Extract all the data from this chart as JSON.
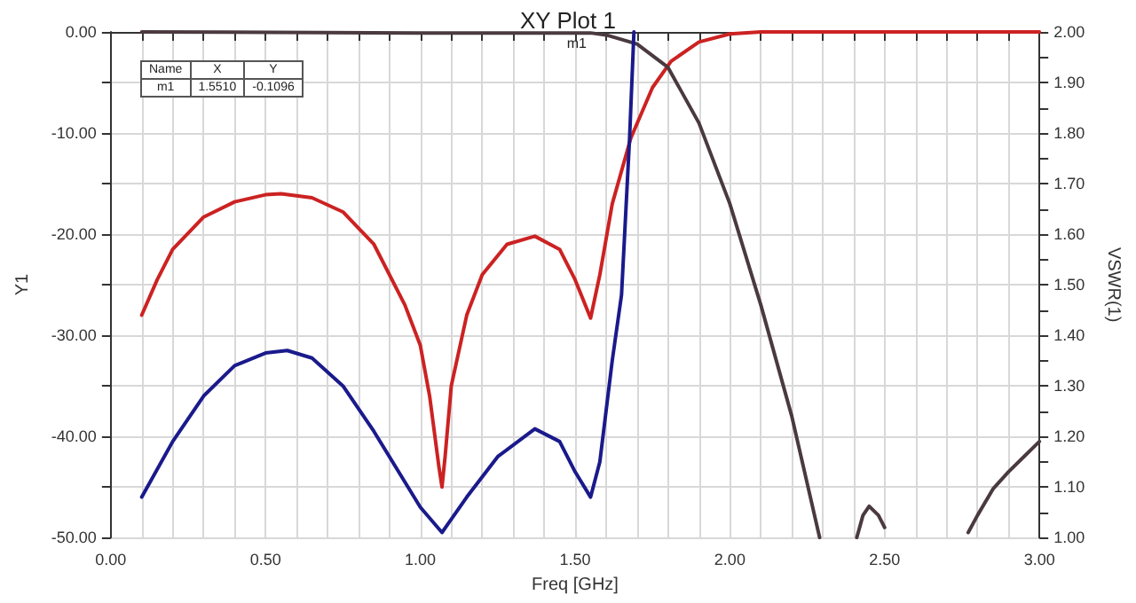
{
  "chart_data": {
    "type": "line",
    "title": "XY Plot 1",
    "xlabel": "Freq [GHz]",
    "ylabel": "Y1",
    "y2label": "VSWR(1)",
    "annotations": [
      "Name",
      "X",
      "Y",
      "m1",
      "1.5510",
      "-0.1096",
      {
        "text": "m1",
        "x": 1.551,
        "y": -0.1096
      }
    ],
    "series": [
      {
        "color": "#cc2222",
        "x": [
          0.1,
          0.15,
          0.2,
          0.3,
          0.4,
          0.5,
          0.55,
          0.65,
          0.75,
          0.85,
          0.95,
          1.0,
          1.03,
          1.06,
          1.07,
          1.08,
          1.1,
          1.15,
          1.2,
          1.28,
          1.37,
          1.45,
          1.5,
          1.55,
          1.58,
          1.62,
          1.68,
          1.75,
          1.81,
          1.9,
          2.0,
          2.1,
          3.0
        ],
        "values": [
          -28,
          -24.5,
          -21.5,
          -18.3,
          -16.8,
          -16.1,
          -16,
          -16.4,
          -17.8,
          -21,
          -27,
          -31,
          -36,
          -43,
          -45,
          -42,
          -35,
          -28,
          -24,
          -21,
          -20.2,
          -21.5,
          -24.5,
          -28.3,
          -24,
          -17,
          -10.5,
          -5.5,
          -2.9,
          -1,
          -0.2,
          0,
          0
        ]
      },
      {
        "color": "#4a3a40",
        "x": [
          0.1,
          1.0,
          1.3,
          1.55,
          1.6,
          1.7,
          1.8,
          1.9,
          2.0,
          2.1,
          2.2,
          2.26,
          2.29,
          2.35,
          2.41,
          2.43,
          2.45,
          2.48,
          2.5,
          2.6,
          2.77,
          2.8,
          2.85,
          2.9,
          2.95,
          3.0
        ],
        "values": [
          0,
          -0.1,
          -0.1,
          -0.1,
          -0.3,
          -1.2,
          -3.5,
          -9,
          -17,
          -27,
          -38,
          -46,
          -50,
          null,
          -50,
          -47.8,
          -46.9,
          -47.8,
          -49,
          null,
          -49.5,
          -47.8,
          -45.2,
          -43.5,
          -42,
          -40.5
        ]
      },
      {
        "color": "#1a1a8c",
        "axis": "y2",
        "x": [
          0.1,
          0.2,
          0.3,
          0.4,
          0.5,
          0.57,
          0.65,
          0.75,
          0.85,
          0.95,
          1.0,
          1.07,
          1.15,
          1.25,
          1.37,
          1.45,
          1.5,
          1.55,
          1.58,
          1.62,
          1.65,
          1.676,
          1.69
        ],
        "values": [
          1.08,
          1.19,
          1.28,
          1.34,
          1.365,
          1.37,
          1.355,
          1.3,
          1.21,
          1.11,
          1.06,
          1.01,
          1.08,
          1.16,
          1.215,
          1.19,
          1.13,
          1.08,
          1.15,
          1.35,
          1.48,
          1.79,
          2.0
        ]
      }
    ],
    "xlim": [
      0,
      3
    ],
    "xticks": [
      {
        "value": 0,
        "label": "0.00"
      },
      {
        "value": 0.1,
        "label": null
      },
      {
        "value": 0.2,
        "label": null
      },
      {
        "value": 0.3,
        "label": null
      },
      {
        "value": 0.4,
        "label": null
      },
      {
        "value": 0.5,
        "label": "0.50"
      },
      {
        "value": 0.6,
        "label": null
      },
      {
        "value": 0.7,
        "label": null
      },
      {
        "value": 0.8,
        "label": null
      },
      {
        "value": 0.9,
        "label": null
      },
      {
        "value": 1,
        "label": "1.00"
      },
      {
        "value": 1.1,
        "label": null
      },
      {
        "value": 1.2,
        "label": null
      },
      {
        "value": 1.3,
        "label": null
      },
      {
        "value": 1.4,
        "label": null
      },
      {
        "value": 1.5,
        "label": "1.50"
      },
      {
        "value": 1.6,
        "label": null
      },
      {
        "value": 1.7,
        "label": null
      },
      {
        "value": 1.8,
        "label": null
      },
      {
        "value": 1.9,
        "label": null
      },
      {
        "value": 2,
        "label": "2.00"
      },
      {
        "value": 2.1,
        "label": null
      },
      {
        "value": 2.2,
        "label": null
      },
      {
        "value": 2.3,
        "label": null
      },
      {
        "value": 2.4,
        "label": null
      },
      {
        "value": 2.5,
        "label": "2.50"
      },
      {
        "value": 2.6,
        "label": null
      },
      {
        "value": 2.7,
        "label": null
      },
      {
        "value": 2.8,
        "label": null
      },
      {
        "value": 2.9,
        "label": null
      },
      {
        "value": 3,
        "label": "3.00"
      }
    ],
    "ylim": [
      -50,
      0
    ],
    "yticks": [
      {
        "value": -50,
        "label": "-50.00"
      },
      {
        "value": -45,
        "label": null
      },
      {
        "value": -40,
        "label": "-40.00"
      },
      {
        "value": -35,
        "label": null
      },
      {
        "value": -30,
        "label": "-30.00"
      },
      {
        "value": -25,
        "label": null
      },
      {
        "value": -20,
        "label": "-20.00"
      },
      {
        "value": -15,
        "label": null
      },
      {
        "value": -10,
        "label": "-10.00"
      },
      {
        "value": -5,
        "label": null
      },
      {
        "value": 0,
        "label": "0.00"
      }
    ],
    "y2lim": [
      1,
      2
    ],
    "y2ticks": [
      {
        "value": 1,
        "label": "1.00"
      },
      {
        "value": 1.05,
        "label": null
      },
      {
        "value": 1.1,
        "label": "1.10"
      },
      {
        "value": 1.15,
        "label": null
      },
      {
        "value": 1.2,
        "label": "1.20"
      },
      {
        "value": 1.25,
        "label": null
      },
      {
        "value": 1.3,
        "label": "1.30"
      },
      {
        "value": 1.35,
        "label": null
      },
      {
        "value": 1.4,
        "label": "1.40"
      },
      {
        "value": 1.45,
        "label": null
      },
      {
        "value": 1.5,
        "label": "1.50"
      },
      {
        "value": 1.55,
        "label": null
      },
      {
        "value": 1.6,
        "label": "1.60"
      },
      {
        "value": 1.65,
        "label": null
      },
      {
        "value": 1.7,
        "label": "1.70"
      },
      {
        "value": 1.75,
        "label": null
      },
      {
        "value": 1.8,
        "label": "1.80"
      },
      {
        "value": 1.85,
        "label": null
      },
      {
        "value": 1.9,
        "label": "1.90"
      },
      {
        "value": 1.95,
        "label": null
      },
      {
        "value": 2,
        "label": "2.00"
      }
    ],
    "grid": true,
    "marker": "none",
    "line_style": "solid"
  }
}
